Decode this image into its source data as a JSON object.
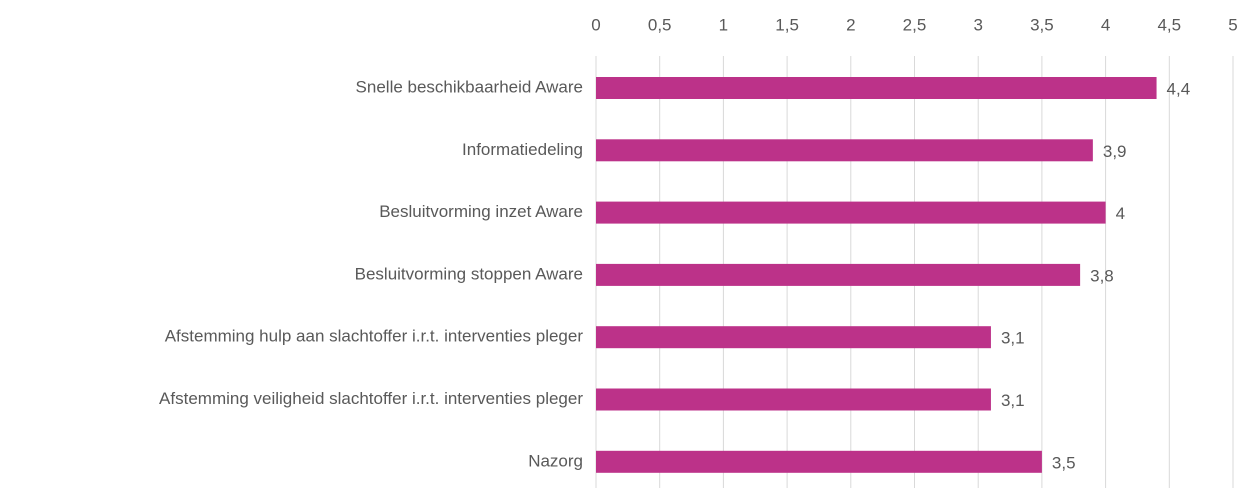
{
  "chart_data": {
    "type": "bar",
    "orientation": "horizontal",
    "categories": [
      "Snelle beschikbaarheid Aware",
      "Informatiedeling",
      "Besluitvorming inzet Aware",
      "Besluitvorming stoppen Aware",
      "Afstemming hulp aan slachtoffer i.r.t. interventies pleger",
      "Afstemming veiligheid slachtoffer i.r.t. interventies pleger",
      "Nazorg"
    ],
    "values": [
      4.4,
      3.9,
      4,
      3.8,
      3.1,
      3.1,
      3.5
    ],
    "value_labels": [
      "4,4",
      "3,9",
      "4",
      "3,8",
      "3,1",
      "3,1",
      "3,5"
    ],
    "color": "#bc3289",
    "xlim": [
      0,
      5
    ],
    "xticks": [
      0,
      {
        "value": 0.5,
        "label": "0,5"
      },
      1,
      {
        "value": 1.5,
        "label": "1,5"
      },
      2,
      {
        "value": 2.5,
        "label": "2,5"
      },
      3,
      {
        "value": 3.5,
        "label": "3,5"
      },
      4,
      {
        "value": 4.5,
        "label": "4,5"
      },
      5
    ],
    "grid": true
  }
}
